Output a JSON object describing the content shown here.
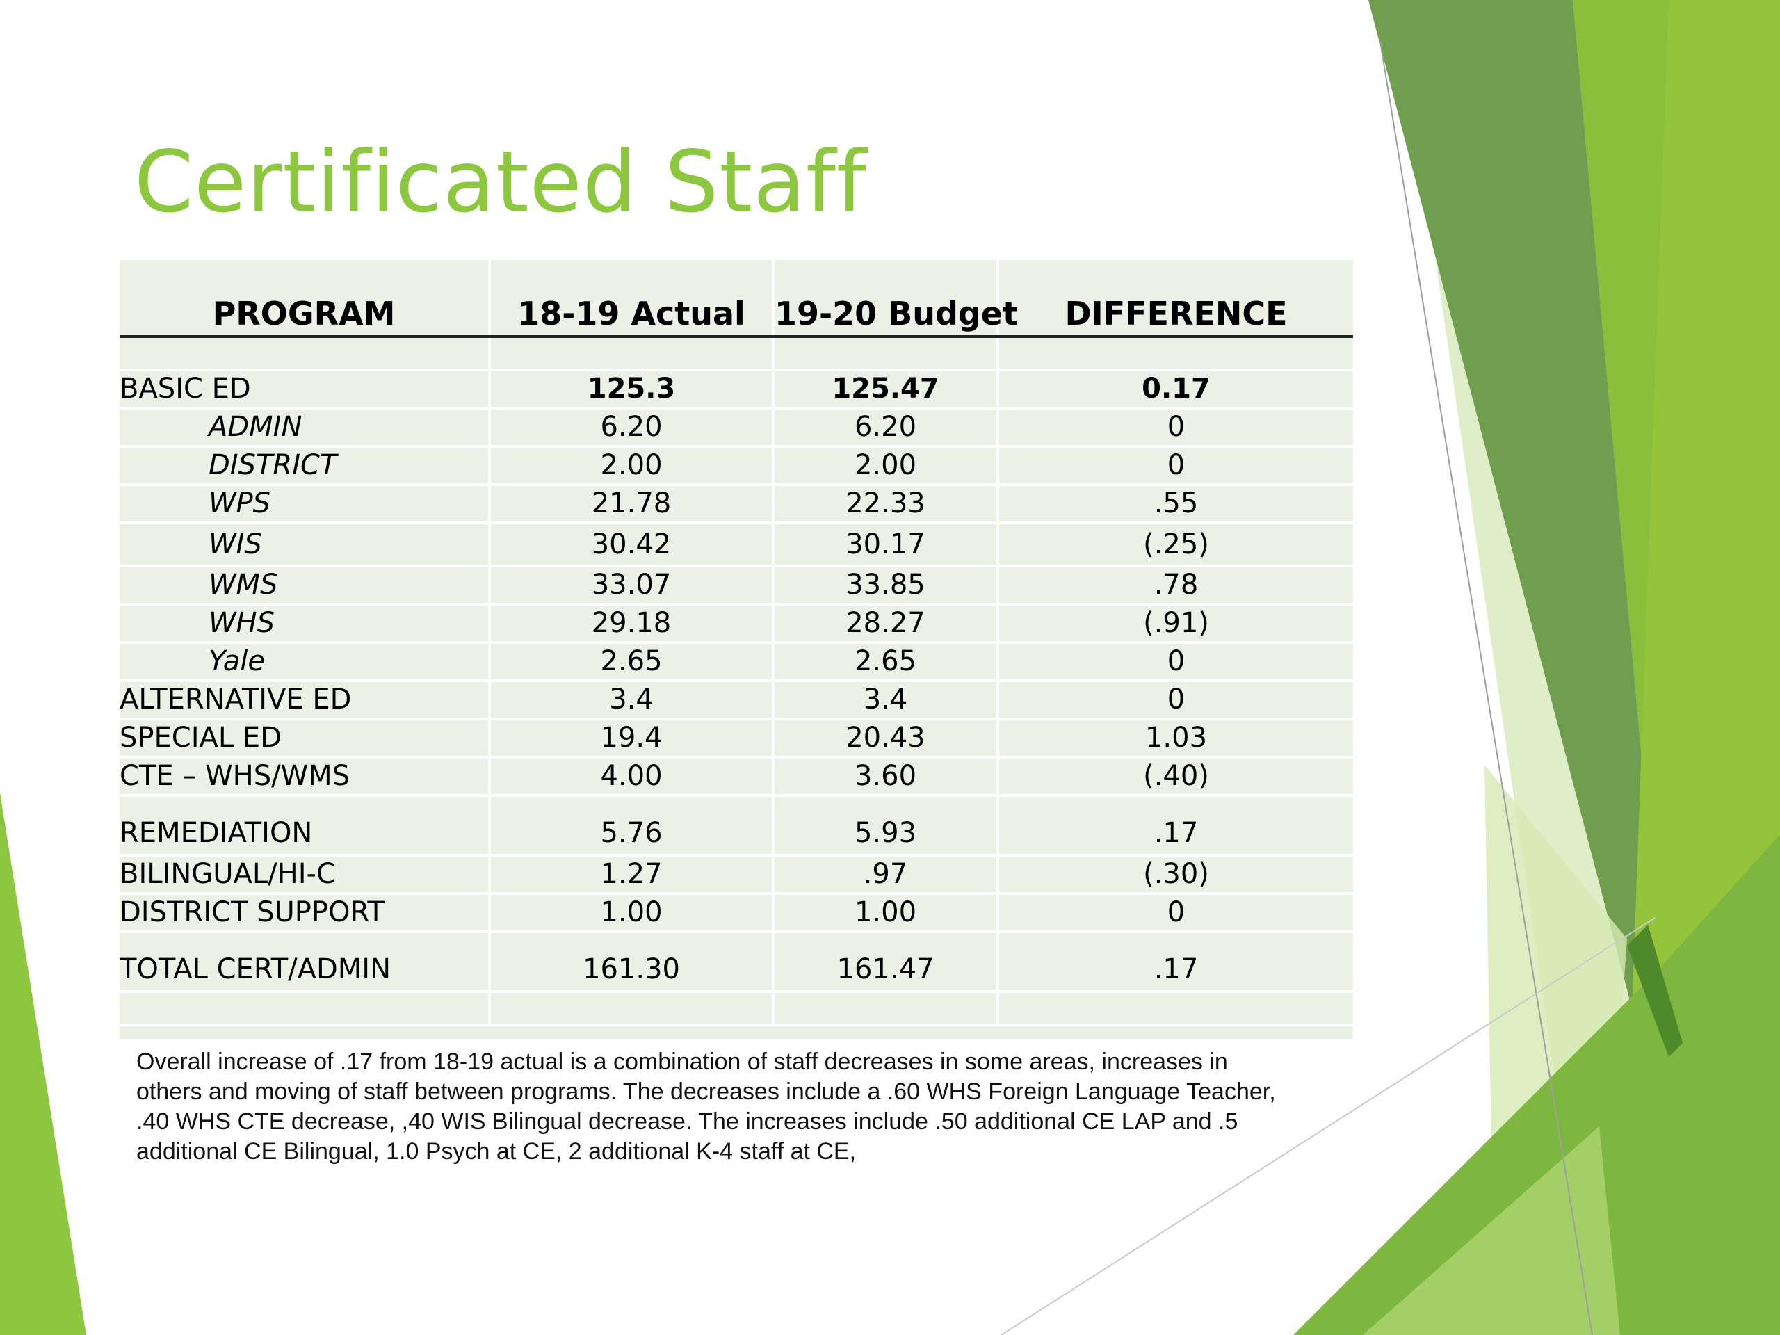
{
  "slide": {
    "title": "Certificated Staff",
    "accent_color": "#8DC63F",
    "table": {
      "headers": [
        "PROGRAM",
        "18-19 Actual",
        "19-20 Budget",
        "DIFFERENCE"
      ],
      "rows": [
        {
          "program": "BASIC ED",
          "actual": "125.3",
          "budget": "125.47",
          "difference": "0.17"
        },
        {
          "program": "ADMIN",
          "actual": "6.20",
          "budget": "6.20",
          "difference": "0"
        },
        {
          "program": "DISTRICT",
          "actual": "2.00",
          "budget": "2.00",
          "difference": "0"
        },
        {
          "program": "WPS",
          "actual": "21.78",
          "budget": "22.33",
          "difference": ".55"
        },
        {
          "program": "WIS",
          "actual": "30.42",
          "budget": "30.17",
          "difference": "(.25)"
        },
        {
          "program": "WMS",
          "actual": "33.07",
          "budget": "33.85",
          "difference": ".78"
        },
        {
          "program": "WHS",
          "actual": "29.18",
          "budget": "28.27",
          "difference": "(.91)"
        },
        {
          "program": "Yale",
          "actual": "2.65",
          "budget": "2.65",
          "difference": "0"
        },
        {
          "program": "ALTERNATIVE ED",
          "actual": "3.4",
          "budget": "3.4",
          "difference": "0"
        },
        {
          "program": "SPECIAL ED",
          "actual": "19.4",
          "budget": "20.43",
          "difference": "1.03"
        },
        {
          "program": "CTE – WHS/WMS",
          "actual": "4.00",
          "budget": "3.60",
          "difference": "(.40)"
        },
        {
          "program": "REMEDIATION",
          "actual": "5.76",
          "budget": "5.93",
          "difference": ".17"
        },
        {
          "program": "BILINGUAL/HI-C",
          "actual": "1.27",
          "budget": ".97",
          "difference": "(.30)"
        },
        {
          "program": "DISTRICT SUPPORT",
          "actual": "1.00",
          "budget": "1.00",
          "difference": "0"
        },
        {
          "program": "TOTAL CERT/ADMIN",
          "actual": "161.30",
          "budget": "161.47",
          "difference": ".17"
        }
      ]
    },
    "note": "Overall increase of .17 from 18-19 actual is a combination of staff decreases in some areas, increases in others and moving of staff between programs.  The decreases include a .60 WHS Foreign Language Teacher,  .40 WHS CTE decrease, ,40 WIS Bilingual decrease.  The increases include .50 additional CE LAP and .5 additional CE Bilingual, 1.0 Psych at CE, 2 additional K-4 staff at CE,"
  }
}
